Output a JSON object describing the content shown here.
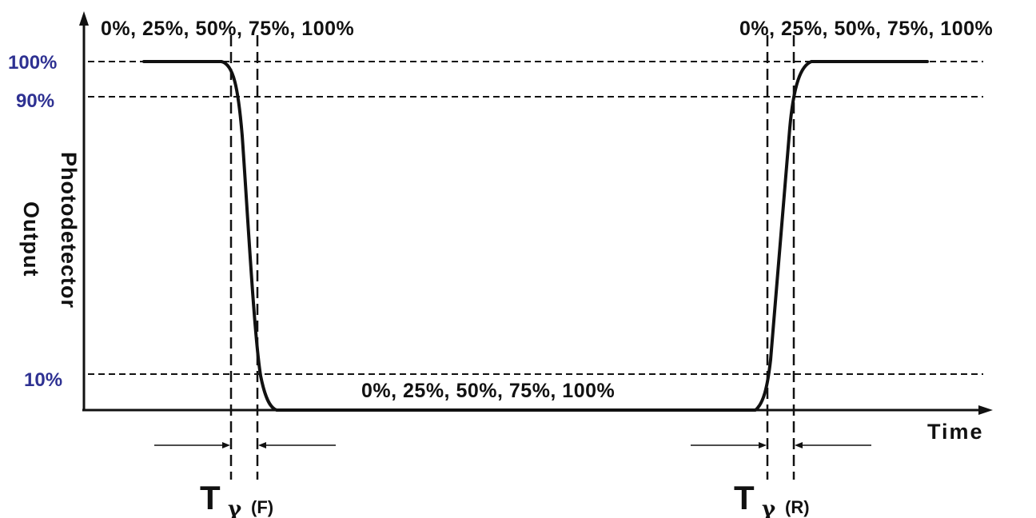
{
  "levels": {
    "l100": "100%",
    "l90": "90%",
    "l10": "10%"
  },
  "percent_labels": {
    "top_left": "0%, 25%, 50%, 75%, 100%",
    "top_right": "0%, 25%, 50%, 75%, 100%",
    "bottom_center": "0%, 25%, 50%, 75%, 100%"
  },
  "axes": {
    "y_label_line1": "Photodetector",
    "y_label_line2": "Output",
    "x_label": "Time"
  },
  "fall_time": {
    "symbol": "T",
    "greek": "γ",
    "suffix": "(F)"
  },
  "rise_time": {
    "symbol": "T",
    "greek": "γ",
    "suffix": "(R)"
  }
}
